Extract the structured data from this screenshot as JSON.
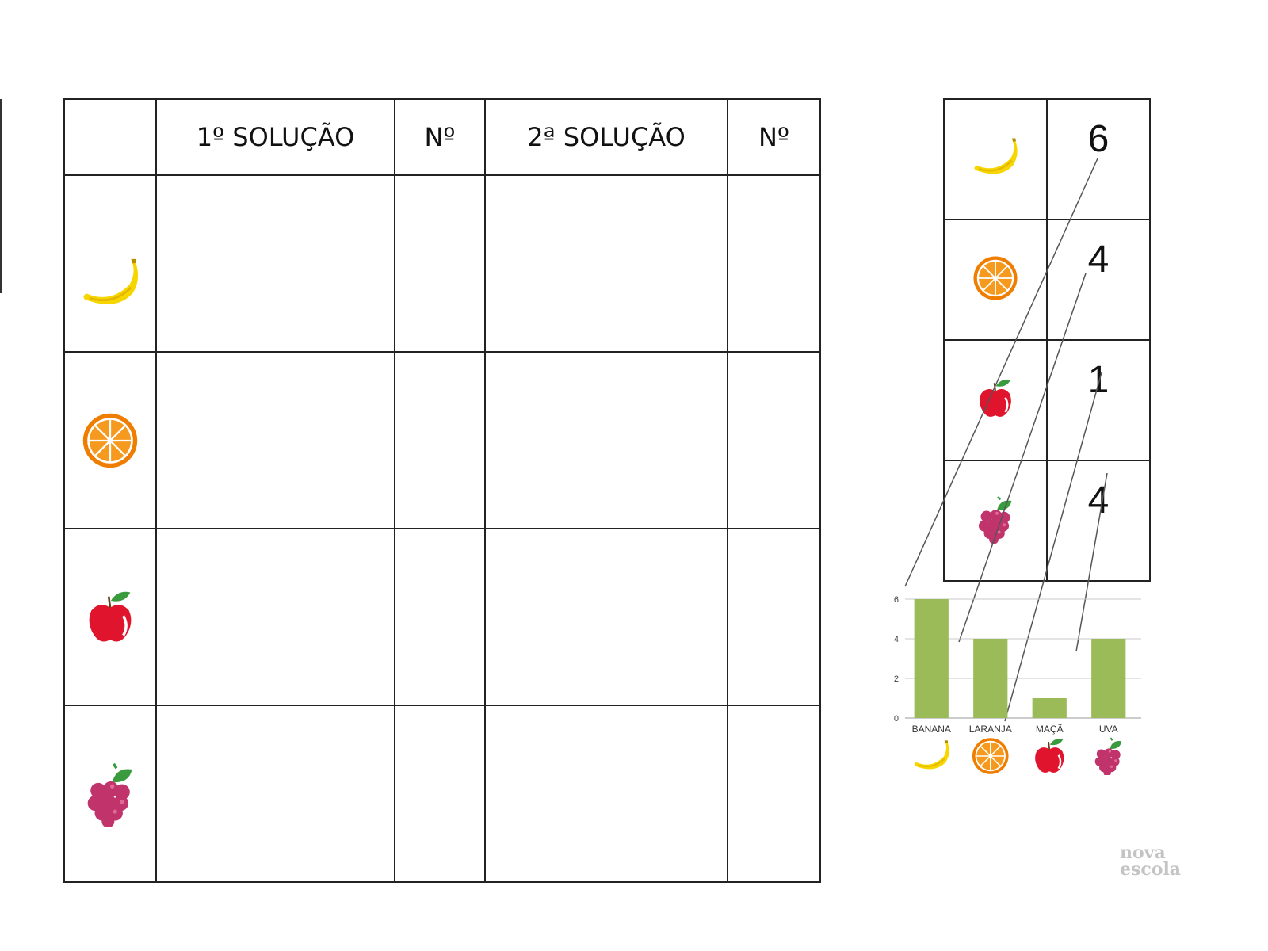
{
  "worksheet": {
    "headers": [
      "",
      "1º SOLUÇÃO",
      "Nº",
      "2ª SOLUÇÃO",
      "Nº"
    ],
    "rows": [
      {
        "fruit": "banana-icon"
      },
      {
        "fruit": "orange-icon"
      },
      {
        "fruit": "apple-icon"
      },
      {
        "fruit": "grape-icon"
      }
    ]
  },
  "summary_table": {
    "rows": [
      {
        "fruit": "banana-icon",
        "count": "6"
      },
      {
        "fruit": "orange-icon",
        "count": "4"
      },
      {
        "fruit": "apple-icon",
        "count": "1"
      },
      {
        "fruit": "grape-icon",
        "count": "4"
      }
    ]
  },
  "chart_data": {
    "type": "bar",
    "categories": [
      "BANANA",
      "LARANJA",
      "MAÇÃ",
      "UVA"
    ],
    "values": [
      6,
      4,
      1,
      4
    ],
    "yticks": [
      0,
      2,
      4,
      6
    ],
    "ylim": [
      0,
      6
    ],
    "bar_color": "#9bbb59",
    "grid": true
  },
  "brand": {
    "line1": "nova",
    "line2": "escola"
  },
  "colors": {
    "banana": "#f7d600",
    "orange": "#ef7d00",
    "apple": "#e1142d",
    "grape": "#c0336b",
    "leaf": "#3a9a3e"
  }
}
